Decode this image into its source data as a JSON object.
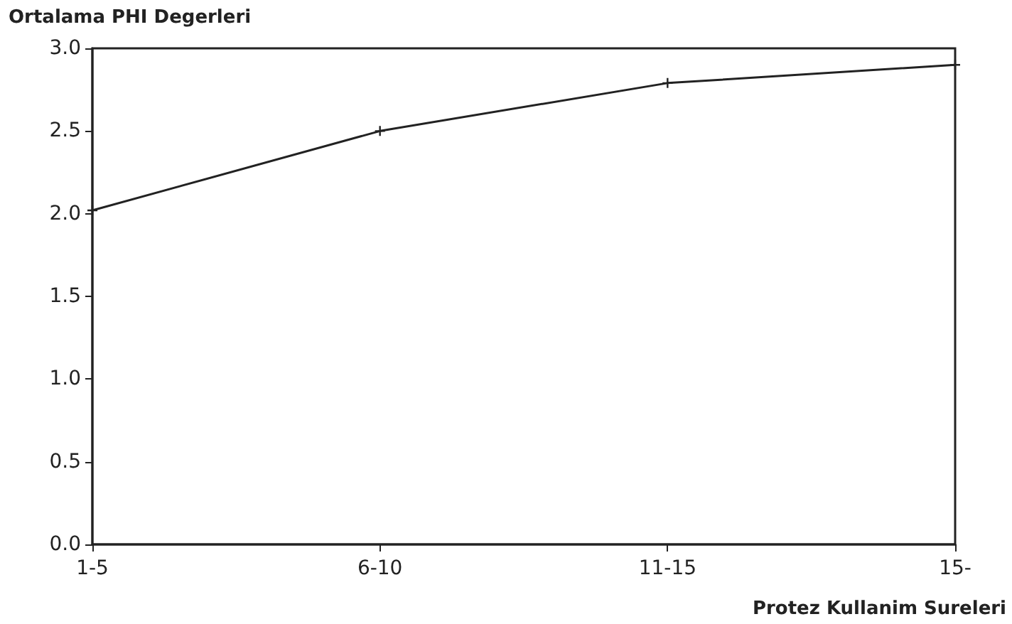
{
  "chart_data": {
    "type": "line",
    "ylabel": "Ortalama PHI Degerleri",
    "xlabel": "Protez Kullanim Sureleri",
    "categories": [
      "1-5",
      "6-10",
      "11-15",
      "15-"
    ],
    "series": [
      {
        "color": "#222222",
        "values": [
          2.02,
          2.5,
          2.79,
          2.9
        ]
      }
    ],
    "ylim": [
      0,
      3
    ],
    "yticks": [
      {
        "value": 0,
        "label": "0.0"
      },
      0.5,
      {
        "value": 1,
        "label": "1.0"
      },
      1.5,
      {
        "value": 2,
        "label": "2.0"
      },
      2.5,
      {
        "value": 3,
        "label": "3.0"
      }
    ],
    "grid": false,
    "marker": "cross",
    "line_style": "solid"
  }
}
